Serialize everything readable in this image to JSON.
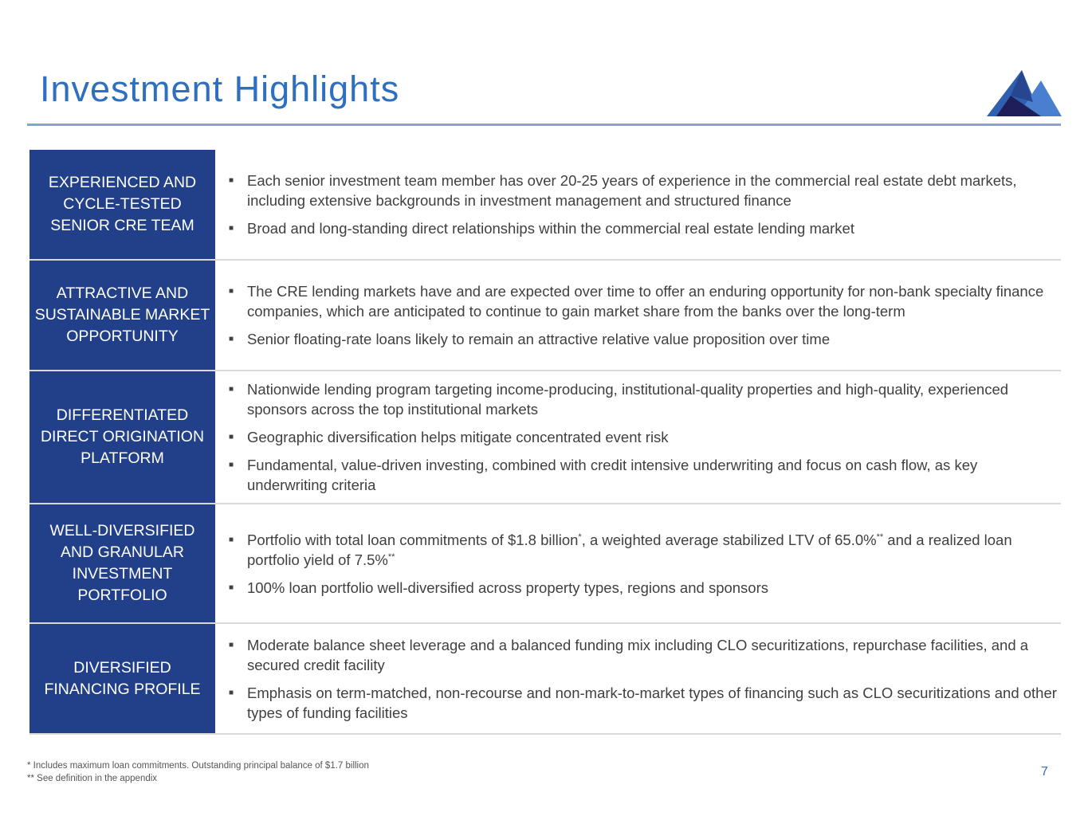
{
  "title": "Investment Highlights",
  "colors": {
    "title": "#2f6fbf",
    "label_bg": "#22408a",
    "rule": "#7ea6d9"
  },
  "logo_icon": "mountain-logo",
  "rows": [
    {
      "label": "EXPERIENCED AND CYCLE-TESTED SENIOR CRE TEAM",
      "bullets": [
        [
          {
            "t": "Each senior investment team member has over 20-25 years of experience in the commercial real estate debt markets, including extensive backgrounds in investment management and structured finance"
          }
        ],
        [
          {
            "t": "Broad and long-standing direct relationships within the commercial real estate lending market"
          }
        ]
      ]
    },
    {
      "label": "ATTRACTIVE AND SUSTAINABLE MARKET OPPORTUNITY",
      "bullets": [
        [
          {
            "t": "The CRE lending markets have and are expected over time to offer an enduring opportunity for non-bank specialty finance companies, which are anticipated to continue to gain market share from the banks over the long-term"
          }
        ],
        [
          {
            "t": "Senior floating-rate loans likely to remain an attractive relative value proposition over time"
          }
        ]
      ]
    },
    {
      "label": "DIFFERENTIATED DIRECT ORIGINATION PLATFORM",
      "bullets": [
        [
          {
            "t": "Nationwide lending program targeting income-producing, institutional-quality properties and high-quality, experienced sponsors across the top institutional markets"
          }
        ],
        [
          {
            "t": "Geographic diversification helps mitigate concentrated event risk"
          }
        ],
        [
          {
            "t": "Fundamental, value-driven investing, combined with credit intensive underwriting and focus on cash flow, as key underwriting criteria"
          }
        ]
      ]
    },
    {
      "label": "WELL-DIVERSIFIED AND GRANULAR INVESTMENT PORTFOLIO",
      "bullets": [
        [
          {
            "t": "Portfolio with total loan commitments of $1.8 billion"
          },
          {
            "sup": "*"
          },
          {
            "t": ", a weighted average stabilized LTV of 65.0%"
          },
          {
            "sup": "**"
          },
          {
            "t": " and a realized loan portfolio yield of 7.5%"
          },
          {
            "sup": "**"
          }
        ],
        [
          {
            "t": "100% loan portfolio well-diversified across property types, regions and sponsors"
          }
        ]
      ]
    },
    {
      "label": "DIVERSIFIED FINANCING PROFILE",
      "bullets": [
        [
          {
            "t": "Moderate balance sheet leverage and a balanced funding mix including CLO securitizations, repurchase facilities, and a secured credit facility"
          }
        ],
        [
          {
            "t": "Emphasis on term-matched, non-recourse and non-mark-to-market types of financing such as CLO securitizations and other types of funding facilities"
          }
        ]
      ]
    }
  ],
  "footnotes": [
    "* Includes maximum loan commitments. Outstanding principal balance of $1.7 billion",
    "** See definition in the appendix"
  ],
  "page_number": "7"
}
